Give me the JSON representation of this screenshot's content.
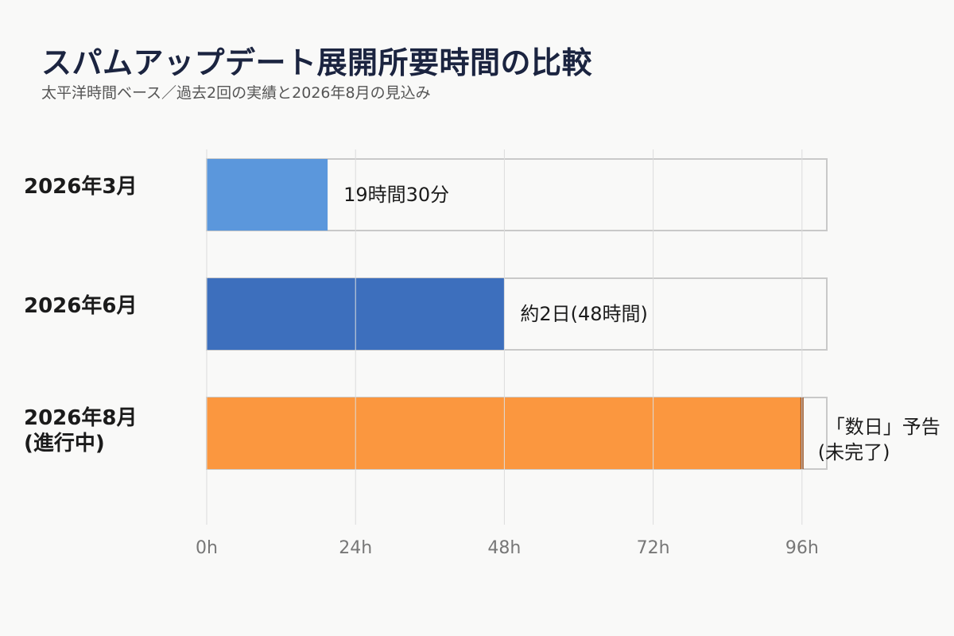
{
  "title": "スパムアップデート展開所要時間の比較",
  "subtitle": "太平洋時間ベース／過去2回の実績と2026年8月の見込み",
  "chart_data": {
    "type": "bar",
    "orientation": "horizontal",
    "unit": "hours",
    "xlim": [
      0,
      100
    ],
    "grid": true,
    "categories": [
      [
        "2026年3月"
      ],
      [
        "2026年6月"
      ],
      [
        "2026年8月",
        "(進行中)"
      ]
    ],
    "values": [
      19.5,
      48,
      96
    ],
    "colors": [
      "#5b97dc",
      "#3d6fbd",
      "#fb973f"
    ],
    "data_labels": [
      [
        "19時間30分"
      ],
      [
        "約2日(48時間)"
      ],
      [
        "「数日」予告",
        "(未完了)"
      ]
    ],
    "x_ticks": [
      {
        "value": 0,
        "label": "0h"
      },
      {
        "value": 24,
        "label": "24h"
      },
      {
        "value": 48,
        "label": "48h"
      },
      {
        "value": 72,
        "label": "72h"
      },
      {
        "value": 96,
        "label": "96h"
      }
    ],
    "in_progress_index": 2,
    "in_progress_marker_color": "#9c5526"
  }
}
